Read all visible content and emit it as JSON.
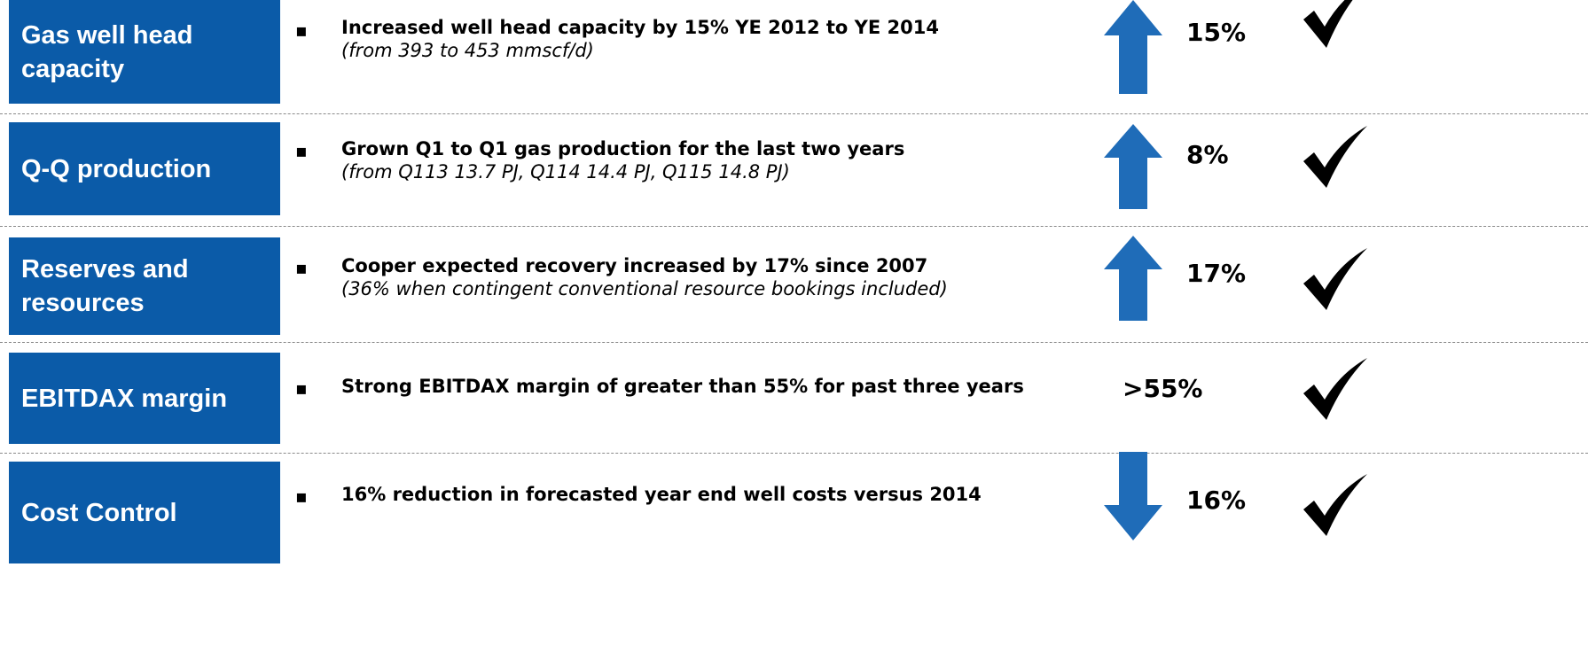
{
  "rows": [
    {
      "label": "Gas well head capacity",
      "bullet": "Increased well head capacity by 15% YE 2012 to YE 2014",
      "detail": "(from 393 to 453 mmscf/d)",
      "value": "15%"
    },
    {
      "label": "Q-Q production",
      "bullet": "Grown Q1 to Q1 gas production for the last two years",
      "detail": "(from Q113 13.7 PJ, Q114 14.4 PJ, Q115 14.8 PJ)",
      "value": "8%"
    },
    {
      "label": "Reserves and resources",
      "bullet": "Cooper expected recovery increased by 17% since 2007",
      "detail": "(36% when contingent conventional resource bookings included)",
      "value": "17%"
    },
    {
      "label": "EBITDAX margin",
      "bullet": "Strong EBITDAX margin of greater than 55% for past three years",
      "value": ">55%"
    },
    {
      "label": "Cost Control",
      "bullet": "16% reduction in forecasted year end well costs versus 2014",
      "value": "16%"
    }
  ]
}
